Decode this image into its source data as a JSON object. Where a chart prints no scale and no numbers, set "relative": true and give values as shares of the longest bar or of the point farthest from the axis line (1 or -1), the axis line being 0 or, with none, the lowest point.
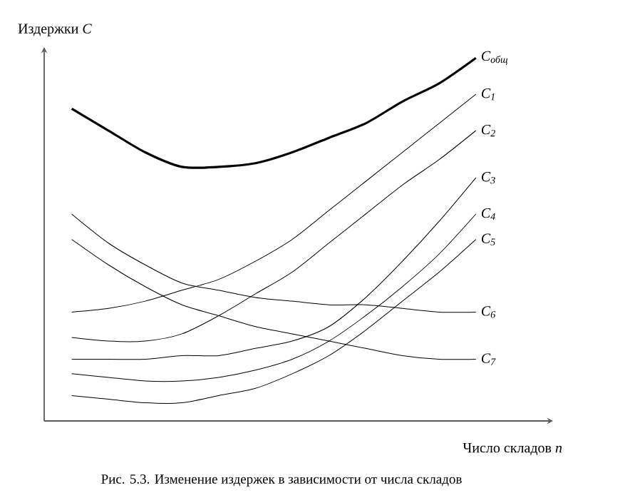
{
  "chart_data": {
    "type": "line",
    "relative": true,
    "ylabel": "Издержки *C*",
    "xlabel": "Число складов *n*",
    "annotations": [
      "Рис. 5.3. Изменение издержек в зависимости от числа складов"
    ],
    "categories": [
      null,
      null,
      null,
      null,
      null,
      null,
      null,
      null,
      null,
      null,
      null,
      null
    ],
    "line_style": "solid",
    "series": [
      {
        "name": "C$_{общ}$",
        "color": "#000000",
        "values": [
          0.86,
          0.8,
          0.74,
          0.7,
          0.7,
          0.71,
          0.74,
          0.78,
          0.82,
          0.88,
          0.93,
          1.0
        ]
      },
      {
        "name": "C$_{1}$",
        "color": "#000000",
        "values": [
          0.3,
          0.31,
          0.33,
          0.36,
          0.39,
          0.44,
          0.5,
          0.58,
          0.66,
          0.74,
          0.82,
          0.9
        ]
      },
      {
        "name": "C$_{2}$",
        "color": "#000000",
        "values": [
          0.23,
          0.22,
          0.22,
          0.24,
          0.29,
          0.35,
          0.41,
          0.49,
          0.57,
          0.65,
          0.72,
          0.8
        ]
      },
      {
        "name": "C$_{3}$",
        "color": "#000000",
        "values": [
          0.17,
          0.17,
          0.17,
          0.18,
          0.18,
          0.2,
          0.22,
          0.26,
          0.34,
          0.44,
          0.55,
          0.67
        ]
      },
      {
        "name": "C$_{4}$",
        "color": "#000000",
        "values": [
          0.13,
          0.12,
          0.11,
          0.11,
          0.12,
          0.14,
          0.17,
          0.22,
          0.29,
          0.37,
          0.46,
          0.57
        ]
      },
      {
        "name": "C$_{5}$",
        "color": "#000000",
        "values": [
          0.07,
          0.06,
          0.05,
          0.05,
          0.07,
          0.09,
          0.13,
          0.18,
          0.25,
          0.33,
          0.41,
          0.5
        ]
      },
      {
        "name": "C$_{6}$",
        "color": "#000000",
        "values": [
          0.57,
          0.49,
          0.43,
          0.38,
          0.36,
          0.34,
          0.33,
          0.32,
          0.32,
          0.31,
          0.3,
          0.3
        ]
      },
      {
        "name": "C$_{7}$",
        "color": "#000000",
        "values": [
          0.5,
          0.43,
          0.37,
          0.32,
          0.29,
          0.26,
          0.24,
          0.22,
          0.2,
          0.18,
          0.17,
          0.17
        ]
      }
    ]
  }
}
